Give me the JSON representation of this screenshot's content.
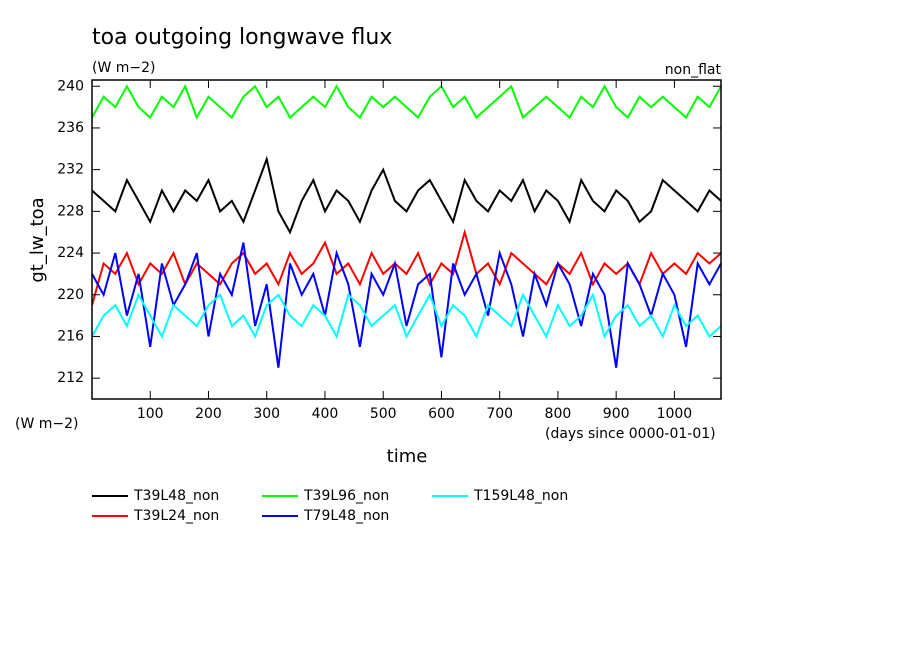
{
  "chart_data": {
    "type": "line",
    "title": "toa outgoing longwave flux",
    "subtitle": "(W m−2)",
    "annotation": "non_flat",
    "y_label": "gt_lw_toa",
    "y_unit": "(W m−2)",
    "x_label": "time",
    "x_unit": "(days since 0000-01-01)",
    "x": [
      0,
      20,
      40,
      60,
      80,
      100,
      120,
      140,
      160,
      180,
      200,
      220,
      240,
      260,
      280,
      300,
      320,
      340,
      360,
      380,
      400,
      420,
      440,
      460,
      480,
      500,
      520,
      540,
      560,
      580,
      600,
      620,
      640,
      660,
      680,
      700,
      720,
      740,
      760,
      780,
      800,
      820,
      840,
      860,
      880,
      900,
      920,
      940,
      960,
      980,
      1000,
      1020,
      1040,
      1060,
      1080
    ],
    "xlim": [
      0,
      1080
    ],
    "xticks": [
      100,
      200,
      300,
      400,
      500,
      600,
      700,
      800,
      900,
      1000
    ],
    "ylim": [
      210,
      240.6
    ],
    "yticks": [
      212,
      216,
      220,
      224,
      228,
      232,
      236,
      240
    ],
    "series": [
      {
        "name": "T39L48_non",
        "color": "#000000",
        "values": [
          230,
          229,
          228,
          231,
          229,
          227,
          230,
          228,
          230,
          229,
          231,
          228,
          229,
          227,
          230,
          233,
          228,
          226,
          229,
          231,
          228,
          230,
          229,
          227,
          230,
          232,
          229,
          228,
          230,
          231,
          229,
          227,
          231,
          229,
          228,
          230,
          229,
          231,
          228,
          230,
          229,
          227,
          231,
          229,
          228,
          230,
          229,
          227,
          228,
          231,
          230,
          229,
          228,
          230,
          229
        ]
      },
      {
        "name": "T39L24_non",
        "color": "#ff0000",
        "values": [
          219,
          223,
          222,
          224,
          221,
          223,
          222,
          224,
          221,
          223,
          222,
          221,
          223,
          224,
          222,
          223,
          221,
          224,
          222,
          223,
          225,
          222,
          223,
          221,
          224,
          222,
          223,
          222,
          224,
          221,
          223,
          222,
          226,
          222,
          223,
          221,
          224,
          223,
          222,
          221,
          223,
          222,
          224,
          221,
          223,
          222,
          223,
          221,
          224,
          222,
          223,
          222,
          224,
          223,
          224
        ]
      },
      {
        "name": "T39L96_non",
        "color": "#00ff00",
        "values": [
          237,
          239,
          238,
          240,
          238,
          237,
          239,
          238,
          240,
          237,
          239,
          238,
          237,
          239,
          240,
          238,
          239,
          237,
          238,
          239,
          238,
          240,
          238,
          237,
          239,
          238,
          239,
          238,
          237,
          239,
          240,
          238,
          239,
          237,
          238,
          239,
          240,
          237,
          238,
          239,
          238,
          237,
          239,
          238,
          240,
          238,
          237,
          239,
          238,
          239,
          238,
          237,
          239,
          238,
          240
        ]
      },
      {
        "name": "T79L48_non",
        "color": "#0000ff",
        "values": [
          222,
          220,
          224,
          218,
          222,
          215,
          223,
          219,
          221,
          224,
          216,
          222,
          220,
          225,
          217,
          221,
          213,
          223,
          220,
          222,
          218,
          224,
          221,
          215,
          222,
          220,
          223,
          217,
          221,
          222,
          214,
          223,
          220,
          222,
          218,
          224,
          221,
          216,
          222,
          219,
          223,
          221,
          217,
          222,
          220,
          213,
          223,
          221,
          218,
          222,
          220,
          215,
          223,
          221,
          223
        ]
      },
      {
        "name": "T159L48_non",
        "color": "#00ffff",
        "values": [
          216,
          218,
          219,
          217,
          220,
          218,
          216,
          219,
          218,
          217,
          219,
          220,
          217,
          218,
          216,
          219,
          220,
          218,
          217,
          219,
          218,
          216,
          220,
          219,
          217,
          218,
          219,
          216,
          218,
          220,
          217,
          219,
          218,
          216,
          219,
          218,
          217,
          220,
          218,
          216,
          219,
          217,
          218,
          220,
          216,
          218,
          219,
          217,
          218,
          216,
          219,
          217,
          218,
          216,
          217
        ]
      }
    ]
  }
}
